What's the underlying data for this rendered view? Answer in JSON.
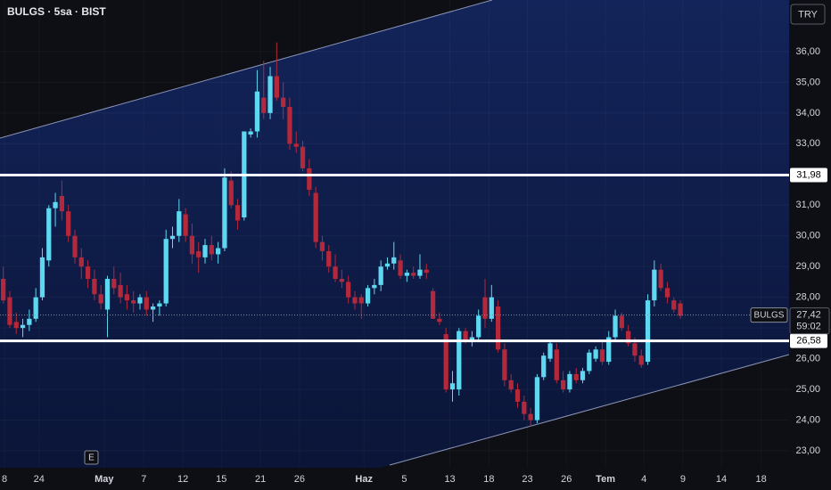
{
  "chart_data": {
    "type": "candlestick",
    "title": "BULGS · 5sa · BIST",
    "currency": "TRY",
    "symbol": "BULGS",
    "countdown": "59:02",
    "event_marker": "E",
    "up_color": "#5ed8f0",
    "down_color": "#b3283a",
    "last_price": {
      "value": 27.42,
      "label": "27,42"
    },
    "horizontal_lines": [
      {
        "value": 31.98,
        "label": "31,98"
      },
      {
        "value": 26.58,
        "label": "26,58"
      }
    ],
    "ylim": [
      22.45,
      37.68
    ],
    "yticks": [
      {
        "value": 23,
        "label": "23,00"
      },
      {
        "value": 24,
        "label": "24,00"
      },
      {
        "value": 25,
        "label": "25,00"
      },
      {
        "value": 26,
        "label": "26,00"
      },
      {
        "value": 27,
        "label": "27,00"
      },
      {
        "value": 28,
        "label": "28,00"
      },
      {
        "value": 29,
        "label": "29,00"
      },
      {
        "value": 30,
        "label": "30,00"
      },
      {
        "value": 31,
        "label": "31,00"
      },
      {
        "value": 32,
        "label": "32,00"
      },
      {
        "value": 33,
        "label": "33,00"
      },
      {
        "value": 34,
        "label": "34,00"
      },
      {
        "value": 35,
        "label": "35,00"
      },
      {
        "value": 36,
        "label": "36,00"
      }
    ],
    "xlim": [
      -0.5,
      120.7
    ],
    "xticks": [
      {
        "value": 0.2,
        "label": "8"
      },
      {
        "value": 5.5,
        "label": "24"
      },
      {
        "value": 15.5,
        "label": "May"
      },
      {
        "value": 21.6,
        "label": "7"
      },
      {
        "value": 27.6,
        "label": "12"
      },
      {
        "value": 33.5,
        "label": "15"
      },
      {
        "value": 39.5,
        "label": "21"
      },
      {
        "value": 45.5,
        "label": "26"
      },
      {
        "value": 55.4,
        "label": "Haz"
      },
      {
        "value": 61.6,
        "label": "5"
      },
      {
        "value": 68.6,
        "label": "13"
      },
      {
        "value": 74.6,
        "label": "18"
      },
      {
        "value": 80.5,
        "label": "23"
      },
      {
        "value": 86.5,
        "label": "26"
      },
      {
        "value": 92.5,
        "label": "Tem"
      },
      {
        "value": 98.4,
        "label": "4"
      },
      {
        "value": 104.4,
        "label": "9"
      },
      {
        "value": 110.3,
        "label": "14"
      },
      {
        "value": 116.4,
        "label": "18"
      }
    ],
    "open": [
      28.6,
      28.0,
      27.2,
      27.0,
      27.1,
      27.3,
      28.0,
      29.2,
      30.9,
      31.3,
      30.8,
      30.0,
      29.3,
      29.0,
      28.6,
      28.1,
      27.6,
      28.6,
      28.4,
      28.1,
      27.9,
      27.8,
      28.0,
      27.6,
      27.7,
      27.8,
      29.9,
      30.0,
      30.7,
      30.0,
      29.5,
      29.3,
      29.7,
      29.4,
      29.6,
      31.8,
      31.0,
      30.6,
      33.3,
      33.4,
      34.5,
      34.0,
      35.2,
      34.5,
      34.2,
      33.0,
      32.9,
      32.2,
      31.4,
      29.8,
      29.5,
      29.0,
      28.6,
      28.5,
      28.0,
      28.0,
      27.8,
      28.3,
      28.4,
      29.0,
      29.1,
      29.2,
      28.7,
      28.8,
      28.7,
      28.9,
      28.2,
      27.3,
      26.8,
      25.0,
      25.0,
      26.9,
      26.6,
      26.7,
      28.0,
      27.3,
      27.7,
      26.3,
      25.3,
      25.0,
      24.6,
      24.2,
      24.0,
      25.4,
      26.0,
      26.3,
      25.3,
      25.0,
      25.5,
      25.3,
      25.6,
      26.0,
      26.3,
      25.9,
      26.7,
      27.4,
      26.9,
      26.5,
      26.1,
      25.9,
      27.9,
      28.9,
      28.3,
      27.9,
      27.8
    ],
    "high": [
      29.0,
      28.2,
      27.5,
      27.3,
      27.6,
      28.3,
      29.6,
      31.0,
      31.4,
      31.8,
      31.0,
      30.2,
      29.6,
      29.2,
      28.9,
      28.4,
      28.7,
      29.0,
      28.8,
      28.4,
      28.2,
      28.1,
      28.2,
      27.8,
      27.9,
      30.2,
      30.3,
      31.2,
      30.9,
      30.4,
      29.8,
      29.9,
      30.0,
      29.8,
      32.2,
      32.1,
      31.2,
      33.4,
      33.5,
      35.4,
      35.7,
      35.5,
      36.3,
      35.0,
      34.5,
      33.4,
      33.1,
      32.5,
      31.6,
      30.0,
      29.7,
      29.4,
      28.9,
      28.7,
      28.2,
      28.1,
      28.4,
      28.6,
      29.2,
      29.3,
      29.8,
      29.4,
      28.9,
      29.0,
      29.4,
      29.1,
      28.3,
      27.5,
      27.0,
      25.6,
      27.0,
      27.0,
      26.9,
      27.6,
      28.6,
      28.4,
      27.9,
      26.5,
      25.5,
      25.2,
      24.8,
      24.4,
      25.5,
      26.2,
      26.6,
      26.5,
      25.6,
      25.6,
      25.7,
      25.7,
      26.3,
      26.4,
      26.6,
      26.9,
      27.6,
      27.5,
      27.1,
      26.7,
      26.3,
      28.1,
      29.2,
      29.1,
      28.5,
      28.0,
      27.9
    ],
    "low": [
      27.8,
      27.0,
      26.8,
      26.7,
      26.9,
      27.2,
      27.9,
      29.0,
      30.3,
      30.5,
      29.8,
      29.1,
      28.6,
      28.3,
      27.9,
      27.6,
      26.7,
      28.1,
      27.8,
      27.6,
      27.5,
      27.6,
      27.4,
      27.2,
      27.4,
      27.7,
      29.6,
      29.8,
      29.8,
      29.1,
      28.8,
      29.1,
      29.2,
      29.1,
      29.5,
      30.9,
      30.2,
      30.5,
      33.2,
      33.2,
      33.8,
      33.8,
      34.4,
      33.8,
      32.8,
      32.7,
      32.1,
      31.3,
      29.6,
      29.2,
      28.8,
      28.5,
      28.3,
      27.8,
      27.6,
      27.3,
      27.7,
      28.1,
      28.2,
      28.9,
      28.9,
      28.6,
      28.5,
      28.6,
      28.6,
      28.6,
      27.3,
      27.1,
      24.9,
      24.6,
      24.8,
      26.5,
      26.4,
      26.6,
      27.0,
      27.2,
      26.2,
      25.1,
      24.9,
      24.4,
      24.0,
      23.8,
      23.9,
      25.3,
      25.9,
      25.2,
      24.9,
      24.9,
      25.2,
      25.2,
      25.5,
      25.9,
      25.8,
      25.8,
      26.6,
      26.9,
      26.4,
      25.9,
      25.7,
      25.8,
      27.7,
      28.2,
      27.8,
      27.5,
      27.3
    ],
    "close": [
      27.9,
      27.1,
      27.0,
      27.1,
      27.3,
      28.0,
      29.3,
      30.9,
      31.1,
      30.8,
      30.0,
      29.3,
      29.0,
      28.6,
      28.1,
      27.8,
      28.6,
      28.3,
      28.0,
      27.9,
      27.8,
      28.0,
      27.6,
      27.7,
      27.8,
      29.9,
      30.0,
      30.8,
      30.0,
      29.4,
      29.3,
      29.7,
      29.4,
      29.6,
      31.9,
      31.0,
      30.5,
      33.4,
      33.4,
      34.7,
      34.0,
      35.2,
      34.5,
      34.2,
      33.0,
      32.9,
      32.2,
      31.5,
      29.8,
      29.5,
      29.0,
      28.6,
      28.5,
      28.0,
      27.8,
      27.8,
      28.3,
      28.4,
      29.0,
      29.1,
      29.3,
      28.7,
      28.8,
      28.7,
      28.9,
      28.8,
      27.3,
      27.2,
      25.0,
      25.2,
      26.9,
      26.6,
      26.7,
      27.4,
      27.3,
      28.0,
      26.3,
      25.3,
      25.0,
      24.6,
      24.2,
      24.0,
      25.4,
      26.1,
      26.5,
      25.3,
      25.0,
      25.5,
      25.3,
      25.6,
      26.2,
      26.3,
      25.9,
      26.7,
      27.4,
      27.0,
      26.5,
      26.1,
      25.8,
      27.9,
      28.9,
      28.3,
      28.0,
      27.6,
      27.4
    ]
  }
}
